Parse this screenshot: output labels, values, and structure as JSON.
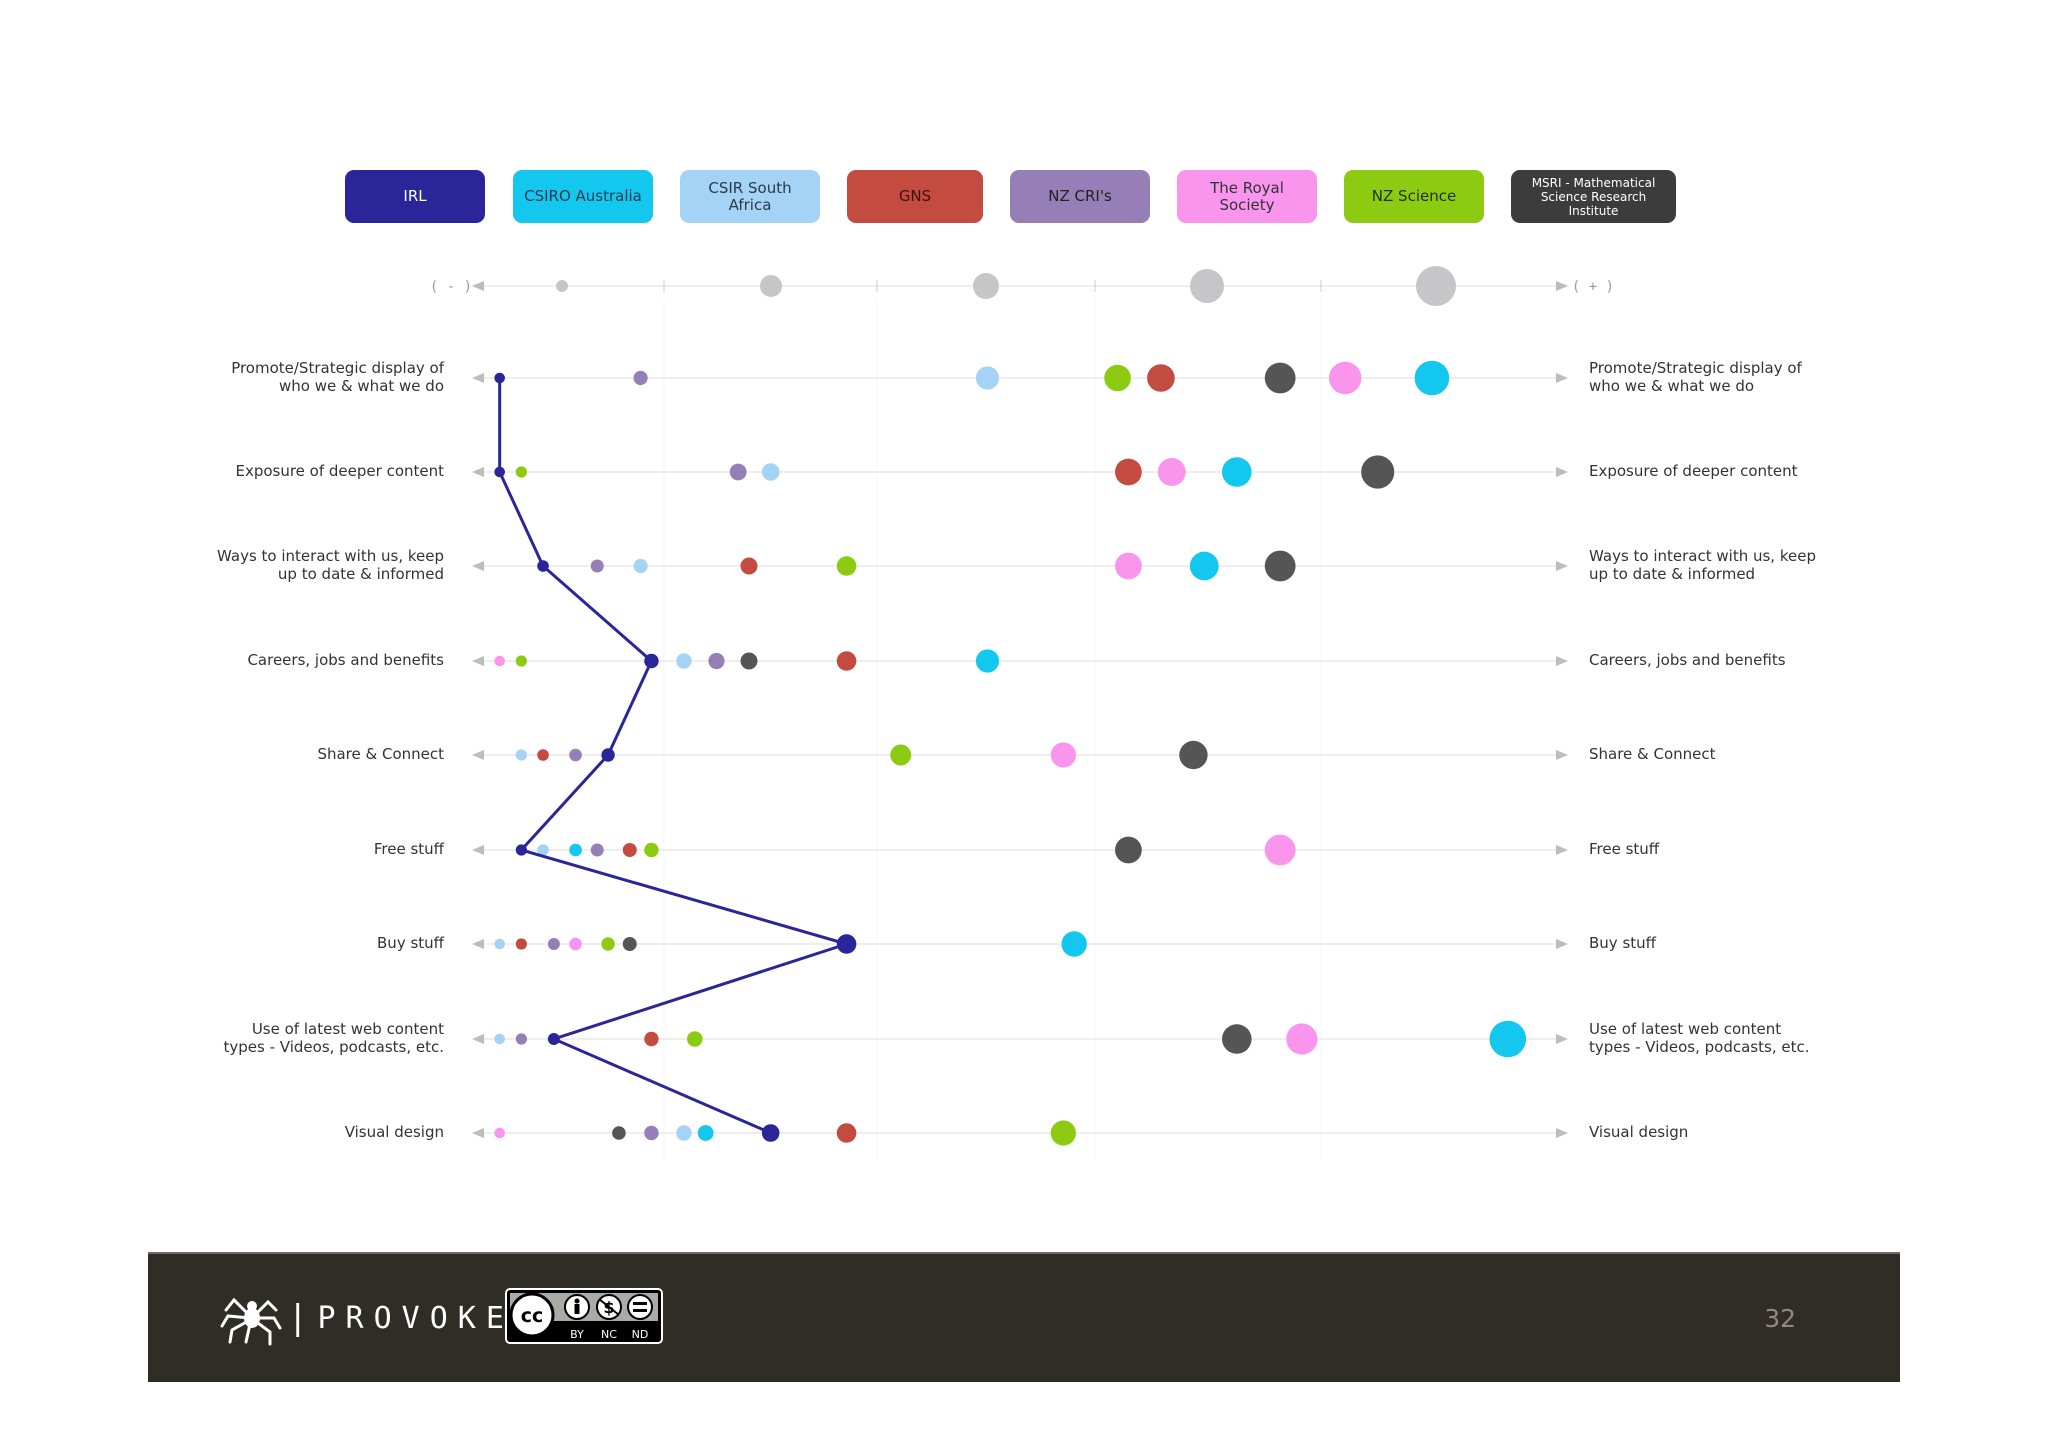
{
  "legend": [
    {
      "name": "IRL",
      "color": "#2a2598",
      "text_color": "#ffffff"
    },
    {
      "name": "CSIRO Australia",
      "color": "#14c7ee",
      "text_color": "#1b3c52"
    },
    {
      "name": "CSIR South Africa",
      "color": "#a5d3f6",
      "text_color": "#2a3a4c"
    },
    {
      "name": "GNS",
      "color": "#c44b3f",
      "text_color": "#3a120e"
    },
    {
      "name": "NZ CRI's",
      "color": "#957fb6",
      "text_color": "#222222"
    },
    {
      "name": "The Royal Society",
      "color": "#f995ed",
      "text_color": "#333333"
    },
    {
      "name": "NZ Science",
      "color": "#8ccb12",
      "text_color": "#1e3300"
    },
    {
      "name": "MSRI - Mathematical Science Research Institute",
      "color": "#3c3c3c",
      "text_color": "#ffffff"
    }
  ],
  "chart_data": {
    "type": "scatter",
    "scale": {
      "left": "( - )",
      "right": "( + )"
    },
    "series_colors": {
      "IRL": "#2a2598",
      "CSIRO Australia": "#14c7ee",
      "CSIR South Africa": "#a5d3f6",
      "GNS": "#c44b3f",
      "NZ CRI's": "#957fb6",
      "The Royal Society": "#f995ed",
      "NZ Science": "#8ccb12",
      "MSRI - Mathematical Science Research Institute": "#555555"
    },
    "categories": [
      "Promote/Strategic display of who we & what we do",
      "Exposure of deeper content",
      "Ways to interact with us, keep up to date & informed",
      "Careers, jobs and benefits",
      "Share & Connect",
      "Free stuff",
      "Buy stuff",
      "Use of latest web content types - Videos, podcasts, etc.",
      "Visual design"
    ],
    "values": [
      {
        "IRL": 2,
        "NZ CRI's": 15,
        "CSIR South Africa": 47,
        "NZ Science": 59,
        "GNS": 63,
        "MSRI - Mathematical Science Research Institute": 74,
        "The Royal Society": 80,
        "CSIRO Australia": 88
      },
      {
        "IRL": 2,
        "NZ Science": 4,
        "NZ CRI's": 24,
        "CSIR South Africa": 27,
        "GNS": 60,
        "The Royal Society": 64,
        "CSIRO Australia": 70,
        "MSRI - Mathematical Science Research Institute": 83
      },
      {
        "IRL": 6,
        "NZ CRI's": 11,
        "CSIR South Africa": 15,
        "GNS": 25,
        "NZ Science": 34,
        "The Royal Society": 60,
        "CSIRO Australia": 67,
        "MSRI - Mathematical Science Research Institute": 74
      },
      {
        "The Royal Society": 2,
        "NZ Science": 4,
        "IRL": 16,
        "CSIR South Africa": 19,
        "NZ CRI's": 22,
        "MSRI - Mathematical Science Research Institute": 25,
        "GNS": 34,
        "CSIRO Australia": 47
      },
      {
        "CSIR South Africa": 4,
        "GNS": 6,
        "NZ CRI's": 9,
        "IRL": 12,
        "NZ Science": 39,
        "The Royal Society": 54,
        "MSRI - Mathematical Science Research Institute": 66
      },
      {
        "IRL": 4,
        "CSIR South Africa": 6,
        "CSIRO Australia": 9,
        "NZ CRI's": 11,
        "GNS": 14,
        "NZ Science": 16,
        "MSRI - Mathematical Science Research Institute": 60,
        "The Royal Society": 74
      },
      {
        "CSIR South Africa": 2,
        "GNS": 4,
        "NZ CRI's": 7,
        "The Royal Society": 9,
        "NZ Science": 12,
        "MSRI - Mathematical Science Research Institute": 14,
        "IRL": 34,
        "CSIRO Australia": 55
      },
      {
        "CSIR South Africa": 2,
        "NZ CRI's": 4,
        "IRL": 7,
        "GNS": 16,
        "NZ Science": 20,
        "MSRI - Mathematical Science Research Institute": 70,
        "The Royal Society": 76,
        "CSIRO Australia": 95
      },
      {
        "The Royal Society": 2,
        "MSRI - Mathematical Science Research Institute": 13,
        "NZ CRI's": 16,
        "CSIR South Africa": 19,
        "CSIRO Australia": 21,
        "IRL": 27,
        "GNS": 34,
        "NZ Science": 54
      }
    ]
  },
  "footer": {
    "brand": "PROVOKE",
    "trademark": "™",
    "license": [
      "BY",
      "NC",
      "ND"
    ],
    "license_logo": "cc",
    "page_number": "32"
  }
}
